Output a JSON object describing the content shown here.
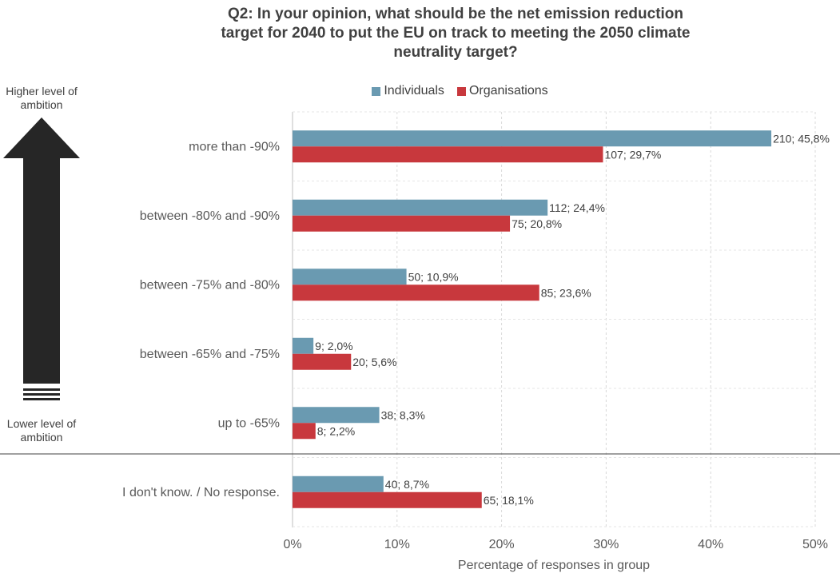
{
  "chart_data": {
    "type": "bar",
    "orientation": "horizontal",
    "title": "Q2: In your opinion, what should be the net emission reduction target for 2040 to put the EU on track to meeting the 2050 climate neutrality target?",
    "title_lines": [
      "Q2: In your opinion, what should be the net emission reduction",
      "target for 2040 to put the EU on track to meeting the 2050 climate",
      "neutrality target?"
    ],
    "xlabel": "Percentage of responses in group",
    "xlim": [
      0,
      50
    ],
    "xticks": [
      "0%",
      "10%",
      "20%",
      "30%",
      "40%",
      "50%"
    ],
    "grid": true,
    "legend_position": "top",
    "categories": [
      "more than -90%",
      "between -80% and -90%",
      "between -75% and -80%",
      "between -65% and -75%",
      "up to -65%",
      "I don't know. / No response."
    ],
    "series": [
      {
        "name": "Individuals",
        "color": "#6a9ab1",
        "values": [
          45.8,
          24.4,
          10.9,
          2.0,
          8.3,
          8.7
        ],
        "labels": [
          "210; 45,8%",
          "112; 24,4%",
          "50; 10,9%",
          "9; 2,0%",
          "38; 8,3%",
          "40; 8,7%"
        ]
      },
      {
        "name": "Organisations",
        "color": "#c8383d",
        "values": [
          29.7,
          20.8,
          23.6,
          5.6,
          2.2,
          18.1
        ],
        "labels": [
          "107; 29,7%",
          "75; 20,8%",
          "85; 23,6%",
          "20; 5,6%",
          "8; 2,2%",
          "65; 18,1%"
        ]
      }
    ],
    "annotations": {
      "higher": "Higher level of ambition",
      "lower": "Lower level of ambition"
    }
  }
}
